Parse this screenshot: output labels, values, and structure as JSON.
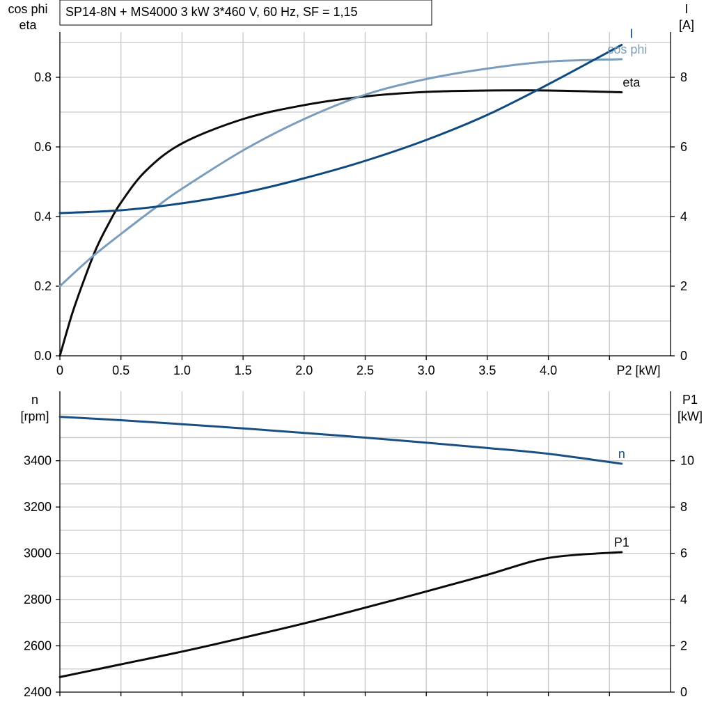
{
  "title": "SP14-8N + MS4000   3 kW   3*460 V, 60 Hz, SF = 1,15",
  "colors": {
    "I": "#0e4a80",
    "cos_phi": "#7a9dbd",
    "eta": "#0a0a0a",
    "n": "#1a4f84",
    "P1": "#0a0a0a",
    "grid": "#c8c8c8"
  },
  "chart_data": [
    {
      "type": "line",
      "name": "upper",
      "left_axis_labels": [
        "cos phi",
        "eta"
      ],
      "right_axis_labels": [
        "I",
        "[A]"
      ],
      "xlabel": "P2 [kW]",
      "xlim": [
        0,
        5.0
      ],
      "ylim_left": [
        0,
        0.93
      ],
      "ylim_right": [
        0,
        9.3
      ],
      "x_ticks": [
        "0",
        "0.5",
        "1.0",
        "1.5",
        "2.0",
        "2.5",
        "3.0",
        "3.5",
        "4.0"
      ],
      "x_tick_values": [
        0,
        0.5,
        1.0,
        1.5,
        2.0,
        2.5,
        3.0,
        3.5,
        4.0
      ],
      "y_left_ticks": [
        "0.0",
        "0.2",
        "0.4",
        "0.6",
        "0.8"
      ],
      "y_left_tick_values": [
        0,
        0.2,
        0.4,
        0.6,
        0.8
      ],
      "y_right_ticks": [
        "0",
        "2",
        "4",
        "6",
        "8"
      ],
      "y_right_tick_values": [
        0,
        2,
        4,
        6,
        8
      ],
      "grid": true,
      "series": [
        {
          "name": "eta",
          "axis": "left",
          "x": [
            0,
            0.1,
            0.2,
            0.3,
            0.4,
            0.5,
            0.7,
            1.0,
            1.5,
            2.0,
            2.5,
            3.0,
            3.5,
            4.0,
            4.6
          ],
          "y": [
            0,
            0.12,
            0.22,
            0.31,
            0.38,
            0.44,
            0.53,
            0.61,
            0.68,
            0.72,
            0.745,
            0.758,
            0.762,
            0.762,
            0.757
          ]
        },
        {
          "name": "cos phi",
          "axis": "left",
          "x": [
            0,
            0.25,
            0.5,
            0.8,
            1.0,
            1.5,
            2.0,
            2.5,
            3.0,
            3.5,
            4.0,
            4.6
          ],
          "y": [
            0.2,
            0.28,
            0.35,
            0.43,
            0.48,
            0.59,
            0.68,
            0.75,
            0.795,
            0.825,
            0.845,
            0.852
          ]
        },
        {
          "name": "I",
          "axis": "right",
          "x": [
            0,
            0.5,
            1.0,
            1.5,
            2.0,
            2.5,
            3.0,
            3.5,
            4.0,
            4.6
          ],
          "y": [
            4.1,
            4.18,
            4.38,
            4.68,
            5.1,
            5.6,
            6.2,
            6.92,
            7.8,
            8.93
          ]
        }
      ]
    },
    {
      "type": "line",
      "name": "lower",
      "left_axis_labels": [
        "n",
        "[rpm]"
      ],
      "right_axis_labels": [
        "P1",
        "[kW]"
      ],
      "xlim": [
        0,
        5.0
      ],
      "ylim_left": [
        2400,
        3700
      ],
      "ylim_right": [
        0,
        13
      ],
      "x_tick_values": [
        0,
        0.5,
        1.0,
        1.5,
        2.0,
        2.5,
        3.0,
        3.5,
        4.0
      ],
      "y_left_ticks": [
        "2400",
        "2600",
        "2800",
        "3000",
        "3200",
        "3400"
      ],
      "y_left_tick_values": [
        2400,
        2600,
        2800,
        3000,
        3200,
        3400
      ],
      "y_right_ticks": [
        "0",
        "2",
        "4",
        "6",
        "8",
        "10"
      ],
      "y_right_tick_values": [
        0,
        2,
        4,
        6,
        8,
        10
      ],
      "grid": true,
      "series": [
        {
          "name": "n",
          "axis": "left",
          "x": [
            0,
            0.5,
            1.0,
            1.5,
            2.0,
            2.5,
            3.0,
            3.5,
            4.0,
            4.6
          ],
          "y": [
            3590,
            3575,
            3558,
            3540,
            3520,
            3500,
            3478,
            3455,
            3430,
            3387
          ]
        },
        {
          "name": "P1",
          "axis": "right",
          "x": [
            0,
            0.5,
            1.0,
            1.5,
            2.0,
            2.5,
            3.0,
            3.5,
            4.0,
            4.6
          ],
          "y": [
            0.65,
            1.2,
            1.75,
            2.35,
            2.97,
            3.65,
            4.35,
            5.07,
            5.8,
            6.05
          ]
        }
      ]
    }
  ]
}
